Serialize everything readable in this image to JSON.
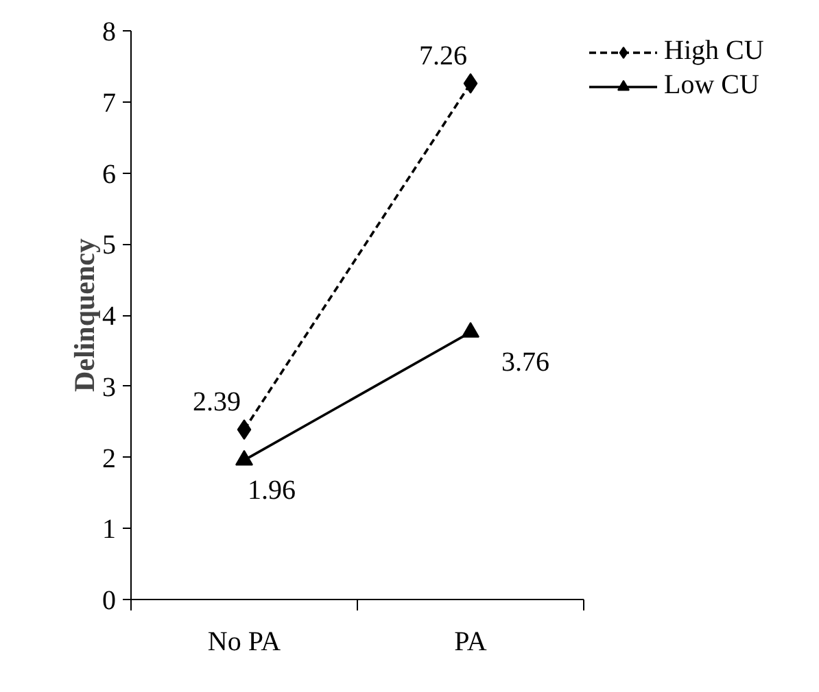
{
  "chart_data": {
    "type": "line",
    "ylabel": "Delinquency",
    "categories": [
      "No PA",
      "PA"
    ],
    "ylim": [
      0,
      8
    ],
    "yticks": [
      0,
      1,
      2,
      3,
      4,
      5,
      6,
      7,
      8
    ],
    "grid": false,
    "legend": "top right",
    "data_labels": true,
    "series": [
      {
        "name": "High CU",
        "color": "#000000",
        "values": [
          2.39,
          7.26
        ],
        "marker": "diamond",
        "line_style": "dashed"
      },
      {
        "name": "Low CU",
        "color": "#000000",
        "values": [
          1.96,
          3.76
        ],
        "marker": "triangle",
        "line_style": "solid"
      }
    ]
  }
}
